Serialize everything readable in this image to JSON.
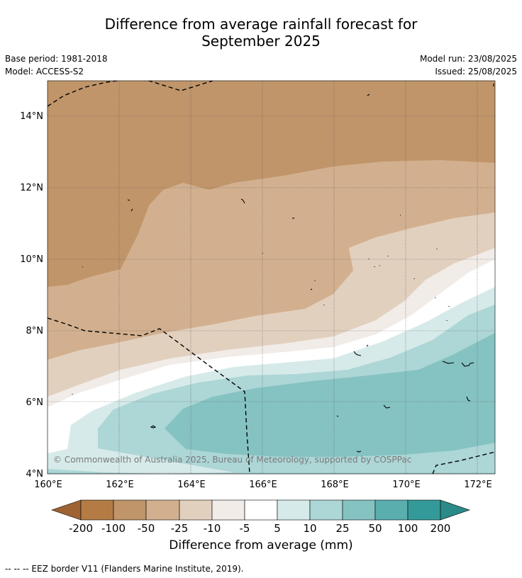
{
  "title_line1": "Difference from average rainfall forecast for",
  "title_line2": "September 2025",
  "meta": {
    "base_period": "Base period: 1981-2018",
    "model": "Model: ACCESS-S2",
    "model_run": "Model run: 23/08/2025",
    "issued": "Issued: 25/08/2025"
  },
  "map": {
    "lon_range": [
      160,
      172.5
    ],
    "lat_range": [
      4,
      15
    ],
    "x_ticks": [
      "160°E",
      "162°E",
      "164°E",
      "166°E",
      "168°E",
      "170°E",
      "172°E"
    ],
    "y_ticks": [
      "4°N",
      "6°N",
      "8°N",
      "10°N",
      "12°N",
      "14°N"
    ],
    "copyright": "© Commonwealth of Australia 2025, Bureau of Meteorology, supported by COSPPac"
  },
  "legend": {
    "label": "Difference from average (mm)",
    "ticks": [
      "-200",
      "-100",
      "-50",
      "-25",
      "-10",
      "-5",
      "5",
      "10",
      "25",
      "50",
      "100",
      "200"
    ],
    "colors": [
      "#9e6332",
      "#b47b45",
      "#c0956a",
      "#d2b08f",
      "#e2d0bf",
      "#f1ece7",
      "#ffffff",
      "#d6eae9",
      "#add6d6",
      "#85c3c2",
      "#5aaeae",
      "#339a99",
      "#2a8a88"
    ]
  },
  "footer": "--  --  -- EEZ border V11 (Flanders Marine Institute, 2019)."
}
